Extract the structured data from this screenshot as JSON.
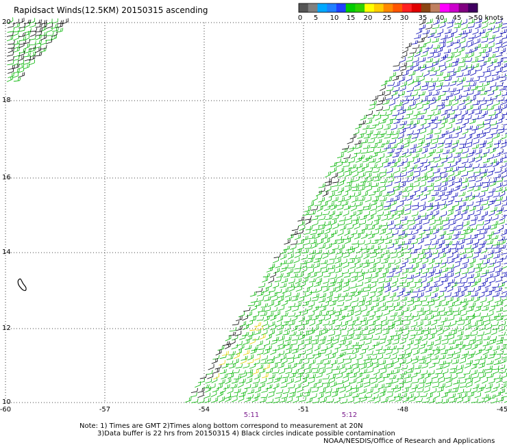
{
  "title": "Rapidsact Winds(12.5KM) 20150315 ascending",
  "colorbar": {
    "labels": [
      "0",
      "5",
      "10",
      "15",
      "20",
      "25",
      "30",
      "35",
      "40",
      "45",
      ">50 knots"
    ],
    "colors": [
      "#555555",
      "#808080",
      "#00a8ff",
      "#2080ff",
      "#2040ff",
      "#00cc00",
      "#30d000",
      "#ffff00",
      "#ffcc00",
      "#ff8800",
      "#ff5500",
      "#ff2020",
      "#e00000",
      "#8b4513",
      "#c08060",
      "#ff00ff",
      "#cc00cc",
      "#800080",
      "#400060"
    ]
  },
  "axes": {
    "lon_ticks": [
      "-60",
      "-57",
      "-54",
      "-51",
      "-48",
      "-45"
    ],
    "lat_ticks": [
      "20",
      "18",
      "16",
      "14",
      "12",
      "10"
    ]
  },
  "time_labels": [
    "5:11",
    "5:12"
  ],
  "notes": [
    "Note: 1) Times are GMT 2)Times along bottom correspond to measurement at 20N",
    "3)Data buffer is 22 hrs from 20150315 4) Black circles indicate possible contamination",
    "NOAA/NESDIS/Office of Research and Applications"
  ],
  "legend_colors": {
    "green": "#00b400",
    "blue": "#0000b4",
    "black": "#000000",
    "yellow": "#e8d000"
  }
}
